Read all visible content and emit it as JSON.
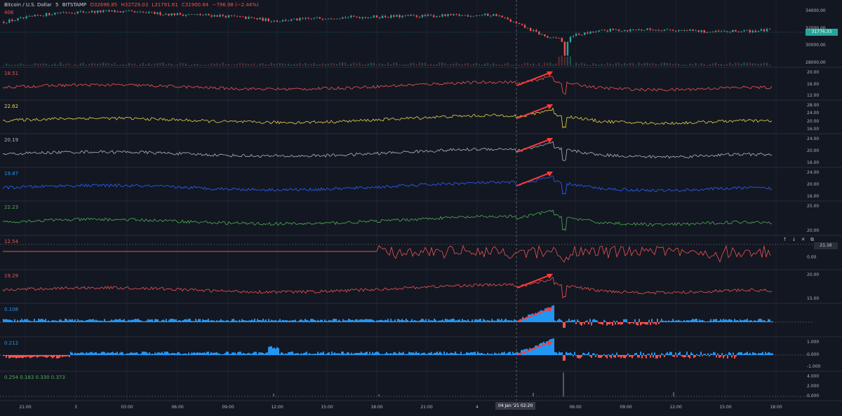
{
  "symbol": {
    "name": "Bitcoin / U.S. Dollar",
    "interval": "5",
    "exchange": "BITSTAMP",
    "open": "O32696.85",
    "high": "H32729.03",
    "low": "L31791.61",
    "close": "C31900.84",
    "change": "−796.98 (−2.44%)",
    "volume": "406"
  },
  "price_axis": [
    "34000.00",
    "32000.00",
    "30000.00",
    "28000.00"
  ],
  "last_price": "31776.33",
  "pane_values": [
    "18.51",
    "22.62",
    "20.19",
    "19.87",
    "22.23",
    "12.54",
    "19.29",
    "0.108",
    "0.212",
    "0.254  0.183  0.330  0.373"
  ],
  "pane_axes": [
    [
      "20.00",
      "16.00",
      "12.00"
    ],
    [
      "28.00",
      "24.00",
      "20.00",
      "16.00"
    ],
    [
      "24.00",
      "20.00",
      "16.00"
    ],
    [
      "24.00",
      "20.00",
      "16.00"
    ],
    [
      "25.00",
      "20.00"
    ],
    [
      "0.00"
    ],
    [
      "20.00",
      "15.00"
    ],
    [],
    [
      "1.000",
      "0.000",
      "-1.000"
    ],
    [
      "4.000",
      "2.000",
      "0.000"
    ]
  ],
  "pane_marker": "21.16",
  "pane_controls": [
    "↑",
    "↓",
    "✕",
    "⧉"
  ],
  "time_axis": [
    "21:00",
    "3",
    "03:00",
    "06:00",
    "09:00",
    "12:00",
    "15:00",
    "18:00",
    "21:00",
    "4",
    "06:00",
    "09:00",
    "12:00",
    "15:00",
    "18:00"
  ],
  "crosshair_time": "04 Jan '21   02:20",
  "colors": {
    "background": "#131722",
    "up": "#26a69a",
    "down": "#ef5350",
    "red_line": "#ef5350",
    "yellow": "#e8d34a",
    "grey": "#b2b5be",
    "blue": "#2962ff",
    "green": "#4caf50",
    "fill_blue": "#2196f3",
    "fill_red": "#ff5252",
    "arrow": "#ff3b3b"
  },
  "chart_data": {
    "type": "line",
    "x": [
      "21:00",
      "3",
      "03:00",
      "06:00",
      "09:00",
      "12:00",
      "15:00",
      "18:00",
      "21:00",
      "4",
      "06:00",
      "09:00",
      "12:00",
      "15:00",
      "18:00"
    ],
    "series": [
      {
        "values": [
          32800,
          33900,
          34000,
          33700,
          33500,
          32900,
          33300,
          33400,
          33500,
          33600,
          30800,
          31800,
          31900,
          31600,
          31800
        ]
      }
    ],
    "ylim": [
      28000,
      35000
    ]
  }
}
